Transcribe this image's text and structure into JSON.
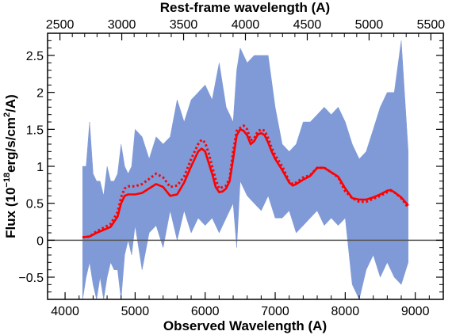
{
  "chart_data": {
    "type": "line",
    "xlabel": "Observed Wavelength (A)",
    "x2label": "Rest-frame wavelength (A)",
    "ylabel_main": "Flux (10",
    "ylabel_exp1": "−18",
    "ylabel_unit": "erg/s/cm",
    "ylabel_exp2": "2",
    "ylabel_end": "/A)",
    "xlim": [
      3750,
      9400
    ],
    "ylim": [
      -0.8,
      2.8
    ],
    "x2lim": [
      2400,
      5600
    ],
    "xticks": [
      "4000",
      "5000",
      "6000",
      "7000",
      "8000",
      "9000"
    ],
    "yticks": [
      "−0.5",
      "0",
      "0.5",
      "1",
      "1.5",
      "2",
      "2.5"
    ],
    "x2ticks": [
      "2500",
      "3000",
      "3500",
      "4000",
      "4500",
      "5000",
      "5500"
    ],
    "zero_line": 0,
    "colors": {
      "spectrum": "#7f9ad6",
      "model": "#ff0000"
    },
    "series": [
      {
        "style": "spectrum-band",
        "x": [
          4250,
          4300,
          4350,
          4400,
          4450,
          4500,
          4550,
          4600,
          4650,
          4700,
          4750,
          4800,
          4850,
          4900,
          4950,
          5000,
          5100,
          5200,
          5300,
          5400,
          5500,
          5600,
          5700,
          5800,
          5900,
          6000,
          6100,
          6200,
          6300,
          6400,
          6450,
          6500,
          6600,
          6700,
          6800,
          6900,
          7000,
          7100,
          7200,
          7300,
          7400,
          7500,
          7600,
          7700,
          7800,
          7900,
          8000,
          8100,
          8200,
          8300,
          8400,
          8500,
          8600,
          8700,
          8800,
          8900
        ],
        "upper": [
          1.0,
          1.0,
          1.6,
          0.9,
          0.8,
          0.8,
          0.6,
          1.0,
          0.8,
          0.8,
          0.9,
          1.3,
          1.0,
          0.9,
          1.0,
          1.5,
          1.4,
          1.1,
          1.4,
          1.3,
          1.4,
          1.9,
          1.6,
          1.9,
          2.0,
          2.1,
          1.9,
          2.4,
          1.8,
          1.6,
          2.3,
          2.6,
          2.4,
          2.5,
          2.5,
          2.5,
          1.8,
          1.3,
          1.2,
          1.3,
          1.6,
          1.6,
          1.7,
          1.8,
          1.7,
          1.8,
          1.6,
          1.3,
          1.1,
          1.2,
          1.5,
          1.8,
          2.0,
          2.0,
          2.7,
          1.2
        ],
        "lower": [
          -0.8,
          -0.5,
          -0.3,
          -0.6,
          -0.8,
          -0.5,
          -0.8,
          -0.5,
          -0.3,
          -0.4,
          -0.4,
          -0.8,
          -0.2,
          0.0,
          -0.2,
          0.2,
          -0.4,
          0.1,
          0.2,
          -0.1,
          0.4,
          0.0,
          0.4,
          0.1,
          0.3,
          0.2,
          0.3,
          0.1,
          0.3,
          0.5,
          -0.1,
          0.8,
          0.6,
          0.5,
          0.4,
          0.6,
          0.3,
          0.3,
          0.4,
          0.1,
          0.2,
          0.3,
          0.4,
          0.2,
          0.3,
          0.2,
          0.3,
          -0.6,
          -0.8,
          -0.4,
          -0.2,
          -0.5,
          -0.3,
          -0.5,
          -0.6,
          -0.3
        ]
      },
      {
        "style": "model-dotted",
        "x": [
          4250,
          4350,
          4450,
          4550,
          4650,
          4750,
          4800,
          4850,
          4900,
          5000,
          5100,
          5200,
          5300,
          5400,
          5500,
          5600,
          5700,
          5800,
          5900,
          5950,
          6000,
          6050,
          6100,
          6150,
          6200,
          6250,
          6300,
          6350,
          6400,
          6450,
          6500,
          6550,
          6600,
          6650,
          6700,
          6750,
          6800,
          6850,
          6900,
          6950,
          7000,
          7100,
          7200,
          7250,
          7300,
          7400,
          7500,
          7600,
          7700,
          7800,
          7900,
          8000,
          8100,
          8200,
          8300,
          8400,
          8500,
          8600,
          8650,
          8700,
          8800,
          8900
        ],
        "y": [
          0.04,
          0.05,
          0.12,
          0.17,
          0.22,
          0.38,
          0.58,
          0.7,
          0.73,
          0.73,
          0.76,
          0.83,
          0.9,
          0.85,
          0.72,
          0.74,
          0.86,
          1.1,
          1.3,
          1.36,
          1.32,
          1.18,
          1.0,
          0.82,
          0.7,
          0.72,
          0.74,
          0.84,
          1.2,
          1.48,
          1.52,
          1.55,
          1.5,
          1.35,
          1.38,
          1.47,
          1.5,
          1.48,
          1.38,
          1.25,
          1.15,
          1.0,
          0.8,
          0.76,
          0.78,
          0.85,
          0.88,
          0.98,
          0.98,
          0.92,
          0.85,
          0.66,
          0.57,
          0.52,
          0.52,
          0.56,
          0.6,
          0.65,
          0.67,
          0.65,
          0.57,
          0.44
        ]
      },
      {
        "style": "model-solid",
        "x": [
          4250,
          4350,
          4450,
          4550,
          4650,
          4750,
          4800,
          4850,
          4900,
          5000,
          5100,
          5200,
          5300,
          5400,
          5500,
          5600,
          5700,
          5800,
          5900,
          5950,
          6000,
          6050,
          6100,
          6150,
          6200,
          6250,
          6300,
          6350,
          6400,
          6450,
          6500,
          6550,
          6600,
          6650,
          6700,
          6750,
          6800,
          6850,
          6900,
          6950,
          7000,
          7100,
          7200,
          7250,
          7300,
          7400,
          7500,
          7600,
          7700,
          7800,
          7900,
          8000,
          8100,
          8200,
          8300,
          8400,
          8500,
          8600,
          8650,
          8700,
          8800,
          8900
        ],
        "y": [
          0.04,
          0.05,
          0.1,
          0.14,
          0.18,
          0.32,
          0.5,
          0.6,
          0.62,
          0.62,
          0.64,
          0.7,
          0.76,
          0.72,
          0.6,
          0.62,
          0.78,
          1.0,
          1.2,
          1.24,
          1.2,
          1.05,
          0.9,
          0.72,
          0.65,
          0.66,
          0.7,
          0.8,
          1.1,
          1.42,
          1.5,
          1.48,
          1.42,
          1.3,
          1.34,
          1.43,
          1.45,
          1.42,
          1.32,
          1.2,
          1.1,
          0.95,
          0.78,
          0.74,
          0.76,
          0.82,
          0.87,
          0.98,
          0.98,
          0.92,
          0.86,
          0.7,
          0.57,
          0.55,
          0.55,
          0.58,
          0.62,
          0.67,
          0.68,
          0.65,
          0.58,
          0.47
        ]
      }
    ]
  }
}
